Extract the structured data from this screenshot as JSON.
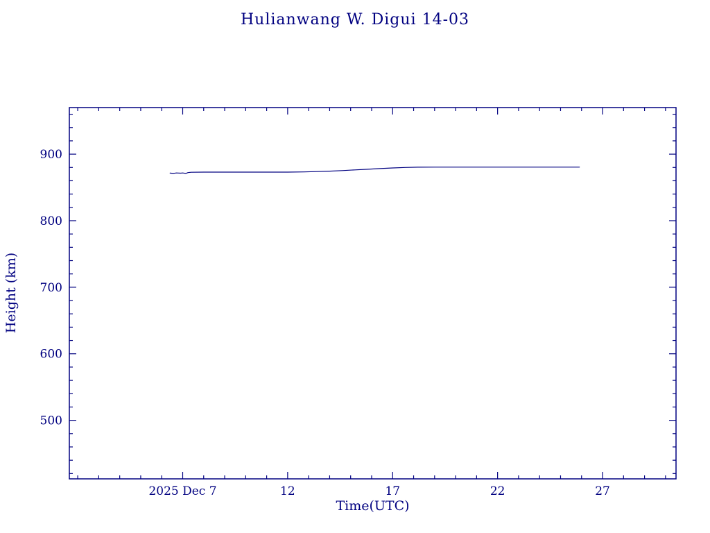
{
  "chart_data": {
    "type": "line",
    "title": "Hulianwang W. Digui 14-03",
    "xlabel": "Time(UTC)",
    "ylabel": "Height (km)",
    "color": "#000080",
    "background": "#ffffff",
    "x_unit": "day of month (December 2025)",
    "xlim": [
      1.6,
      30.5
    ],
    "ylim": [
      412,
      970
    ],
    "grid": false,
    "legend": "none",
    "x_major_ticks": [
      {
        "value": 7,
        "label": "2025 Dec 7"
      },
      {
        "value": 12,
        "label": "12"
      },
      {
        "value": 17,
        "label": "17"
      },
      {
        "value": 22,
        "label": "22"
      },
      {
        "value": 27,
        "label": "27"
      }
    ],
    "y_major_ticks": [
      {
        "value": 500,
        "label": "500"
      },
      {
        "value": 600,
        "label": "600"
      },
      {
        "value": 700,
        "label": "700"
      },
      {
        "value": 800,
        "label": "800"
      },
      {
        "value": 900,
        "label": "900"
      }
    ],
    "x_minor_step": 1,
    "y_minor_step": 20,
    "series": [
      {
        "name": "satellite-height",
        "x": [
          6.4,
          6.55,
          6.7,
          6.9,
          7.0,
          7.15,
          7.25,
          7.4,
          8.0,
          9.0,
          10.0,
          11.0,
          12.0,
          12.8,
          13.4,
          14.0,
          14.6,
          15.2,
          15.8,
          16.4,
          17.0,
          17.6,
          18.2,
          19.0,
          20.0,
          21.0,
          22.0,
          23.0,
          24.0,
          25.0,
          25.9
        ],
        "y": [
          871.5,
          871.0,
          871.8,
          871.4,
          871.8,
          871.0,
          872.3,
          872.8,
          873.0,
          873.0,
          873.0,
          873.0,
          873.0,
          873.3,
          873.8,
          874.5,
          875.3,
          876.3,
          877.3,
          878.3,
          879.3,
          880.0,
          880.4,
          880.5,
          880.5,
          880.5,
          880.5,
          880.5,
          880.5,
          880.5,
          880.5
        ]
      }
    ]
  }
}
